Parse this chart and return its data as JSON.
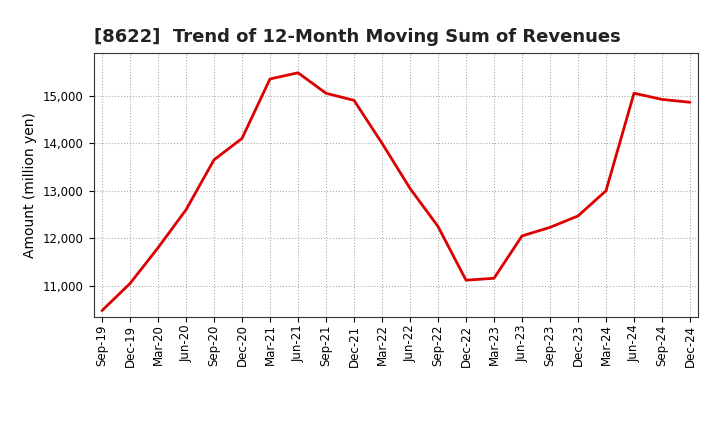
{
  "title": "[8622]  Trend of 12-Month Moving Sum of Revenues",
  "ylabel": "Amount (million yen)",
  "background_color": "#ffffff",
  "line_color": "#dd0000",
  "grid_color": "#999999",
  "labels": [
    "Sep-19",
    "Dec-19",
    "Mar-20",
    "Jun-20",
    "Sep-20",
    "Dec-20",
    "Mar-21",
    "Jun-21",
    "Sep-21",
    "Dec-21",
    "Mar-22",
    "Jun-22",
    "Sep-22",
    "Dec-22",
    "Mar-23",
    "Jun-23",
    "Sep-23",
    "Dec-23",
    "Mar-24",
    "Jun-24",
    "Sep-24",
    "Dec-24"
  ],
  "values": [
    10480,
    11050,
    11800,
    12600,
    13650,
    14100,
    15350,
    15480,
    15050,
    14900,
    14000,
    13050,
    12250,
    11120,
    11160,
    12050,
    12230,
    12470,
    13000,
    15050,
    14920,
    14860
  ],
  "ylim_min": 10350,
  "ylim_max": 15900,
  "yticks": [
    11000,
    12000,
    13000,
    14000,
    15000
  ],
  "title_fontsize": 13,
  "title_fontweight": "bold",
  "axis_label_fontsize": 10,
  "tick_fontsize": 8.5
}
